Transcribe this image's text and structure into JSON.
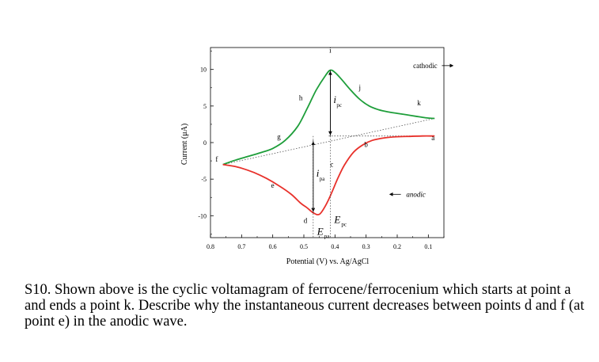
{
  "chart_data": {
    "type": "line",
    "xlabel": "Potential (V) vs. Ag/AgCl",
    "ylabel": "Current (μA)",
    "xlim": [
      0.8,
      0.05
    ],
    "ylim": [
      -13,
      13
    ],
    "x_reversed": true,
    "x_ticks": [
      "0.8",
      "0.7",
      "0.6",
      "0.5",
      "0.4",
      "0.3",
      "0.2",
      "0.1"
    ],
    "y_ticks": [
      "10",
      "5",
      "0",
      "-5",
      "-10"
    ],
    "grid": false,
    "series": [
      {
        "color": "#1e9e3a",
        "x": [
          0.76,
          0.72,
          0.68,
          0.64,
          0.6,
          0.56,
          0.52,
          0.49,
          0.46,
          0.43,
          0.415,
          0.4,
          0.38,
          0.35,
          0.32,
          0.29,
          0.26,
          0.23,
          0.2,
          0.17,
          0.14,
          0.11,
          0.08
        ],
        "y": [
          -3.0,
          -2.4,
          -1.9,
          -1.4,
          -0.8,
          0.3,
          2.2,
          4.6,
          7.2,
          9.2,
          9.9,
          9.6,
          8.7,
          7.2,
          5.9,
          5.0,
          4.5,
          4.2,
          4.0,
          3.8,
          3.6,
          3.4,
          3.3
        ]
      },
      {
        "color": "#e8312b",
        "x": [
          0.08,
          0.12,
          0.16,
          0.2,
          0.24,
          0.28,
          0.31,
          0.34,
          0.37,
          0.39,
          0.41,
          0.43,
          0.45,
          0.47,
          0.49,
          0.51,
          0.54,
          0.58,
          0.62,
          0.66,
          0.7,
          0.73,
          0.76
        ],
        "y": [
          0.9,
          0.9,
          0.85,
          0.8,
          0.65,
          0.3,
          -0.3,
          -1.3,
          -3.1,
          -4.8,
          -6.8,
          -8.6,
          -9.8,
          -9.6,
          -8.9,
          -8.3,
          -7.1,
          -5.9,
          -4.9,
          -4.1,
          -3.5,
          -3.2,
          -3.0
        ]
      }
    ],
    "baselines": [
      {
        "x": [
          0.76,
          0.08
        ],
        "y": [
          -3.0,
          3.3
        ]
      },
      {
        "x": [
          0.42,
          0.08
        ],
        "y": [
          0.9,
          0.9
        ]
      }
    ],
    "markers": [
      {
        "label": "i",
        "sub": "pc",
        "x": 0.415,
        "y_from": 0.9,
        "y_to": 9.9
      },
      {
        "label": "i",
        "sub": "pa",
        "x": 0.47,
        "y_from": -9.6,
        "y_to": 0.3
      },
      {
        "label": "E",
        "sub": "pc",
        "x": 0.415
      },
      {
        "label": "E",
        "sub": "pa",
        "x": 0.47
      }
    ],
    "annotations": [
      {
        "text": "a",
        "x": 0.085,
        "y": 0.3
      },
      {
        "text": "b",
        "x": 0.3,
        "y": -0.6
      },
      {
        "text": "c",
        "x": 0.41,
        "y": -3.3
      },
      {
        "text": "d",
        "x": 0.495,
        "y": -11.0
      },
      {
        "text": "e",
        "x": 0.6,
        "y": -6.2
      },
      {
        "text": "f",
        "x": 0.78,
        "y": -2.6
      },
      {
        "text": "g",
        "x": 0.58,
        "y": 0.5
      },
      {
        "text": "h",
        "x": 0.51,
        "y": 5.8
      },
      {
        "text": "i",
        "x": 0.415,
        "y": 12.3
      },
      {
        "text": "j",
        "x": 0.32,
        "y": 7.2
      },
      {
        "text": "k",
        "x": 0.13,
        "y": 5.1
      },
      {
        "text": "cathodic",
        "x": 0.11,
        "y": 10.2,
        "arrow": "right"
      },
      {
        "text": "anodic",
        "x": 0.14,
        "y": -7.4,
        "arrow": "left"
      }
    ]
  },
  "question": "S10.  Shown above is the cyclic voltamagram of ferrocene/ferrocenium which starts at point a and ends a point k.  Describe why the instantaneous current decreases between points d and f (at point e) in the anodic wave."
}
